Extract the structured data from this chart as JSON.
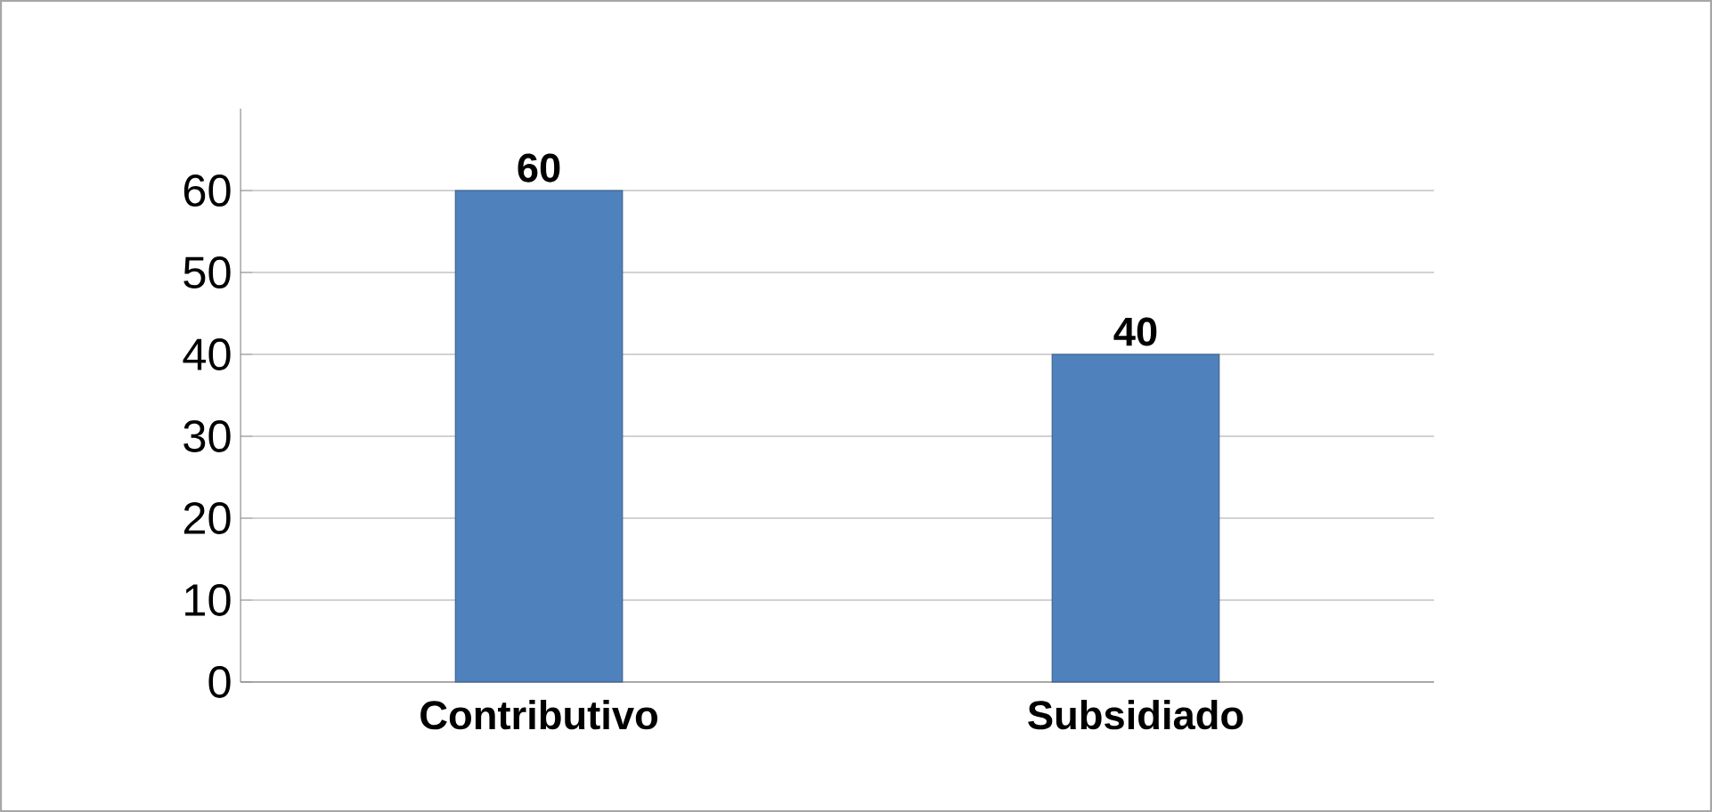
{
  "chart_data": {
    "type": "bar",
    "categories": [
      "Contributivo",
      "Subsidiado"
    ],
    "values": [
      60,
      40
    ],
    "color": "#4f81bd",
    "ylim": [
      0,
      70
    ],
    "yticks": [
      0,
      10,
      20,
      30,
      40,
      50,
      60
    ],
    "grid": "y",
    "data_labels": true
  }
}
